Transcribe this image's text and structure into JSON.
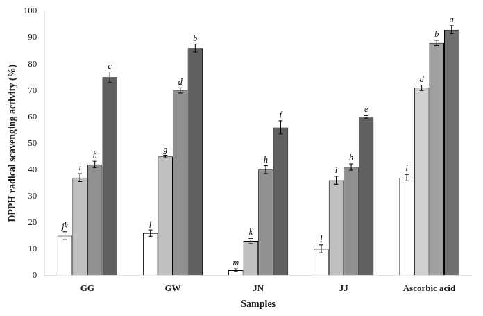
{
  "chart_data": {
    "type": "bar",
    "xlabel": "Samples",
    "ylabel": "DPPH radical scavenging activity (%)",
    "categories": [
      "GG",
      "GW",
      "JN",
      "JJ",
      "Ascorbic acid"
    ],
    "series": [
      {
        "colors": [
          "#ffffff",
          "#ffffff",
          "#ffffff",
          "#ffffff",
          "#ffffff"
        ],
        "values": [
          15,
          16,
          2,
          10,
          37
        ],
        "errors": [
          1.5,
          1.2,
          0.5,
          1.5,
          1.2
        ],
        "annotations": [
          "jk",
          "j",
          "m",
          "l",
          "i"
        ]
      },
      {
        "colors": [
          "#c0c0c0",
          "#c0c0c0",
          "#c0c0c0",
          "#c0c0c0",
          "#d0d0d0"
        ],
        "values": [
          37,
          45,
          13,
          36,
          71
        ],
        "errors": [
          1.5,
          0.5,
          1.0,
          1.5,
          1.0
        ],
        "annotations": [
          "i",
          "g",
          "k",
          "i",
          "d"
        ]
      },
      {
        "colors": [
          "#909090",
          "#909090",
          "#909090",
          "#909090",
          "#a0a0a0"
        ],
        "values": [
          42,
          70,
          40,
          41,
          88
        ],
        "errors": [
          1.2,
          1.0,
          1.5,
          1.2,
          1.0
        ],
        "annotations": [
          "h",
          "d",
          "h",
          "h",
          "b"
        ]
      },
      {
        "colors": [
          "#606060",
          "#606060",
          "#606060",
          "#606060",
          "#707070"
        ],
        "values": [
          75,
          86,
          56,
          60,
          93
        ],
        "errors": [
          2.0,
          1.5,
          2.5,
          0.5,
          1.5
        ],
        "annotations": [
          "c",
          "b",
          "f",
          "e",
          "a"
        ]
      }
    ],
    "ylim": [
      0,
      100
    ],
    "yticks": [
      0,
      10,
      20,
      30,
      40,
      50,
      60,
      70,
      80,
      90,
      100
    ],
    "grid": false
  }
}
